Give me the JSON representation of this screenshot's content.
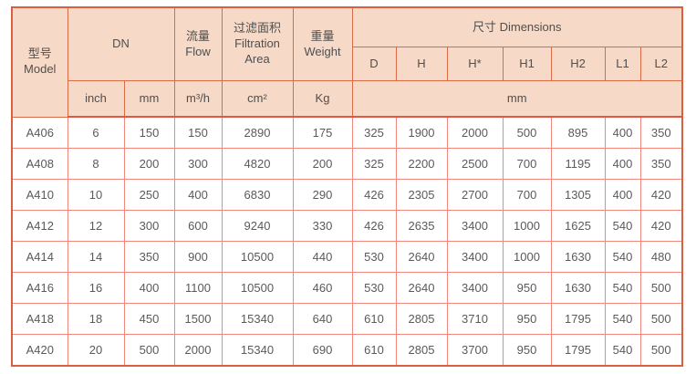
{
  "table": {
    "header": {
      "model_cn": "型号",
      "model_en": "Model",
      "dn": "DN",
      "flow_cn": "流量",
      "flow_en": "Flow",
      "filtration_cn": "过滤面积",
      "filtration_en": "Filtration Area",
      "weight_cn": "重量",
      "weight_en": "Weight",
      "dimensions": "尺寸 Dimensions",
      "dim_cols": [
        "D",
        "H",
        "H*",
        "H1",
        "H2",
        "L1",
        "L2"
      ],
      "units": {
        "dn_inch": "inch",
        "dn_mm": "mm",
        "flow": "m³/h",
        "filtration": "cm²",
        "weight": "Kg",
        "dimensions": "mm"
      }
    },
    "rows": [
      {
        "model": "A406",
        "values": [
          "6",
          "150",
          "150",
          "2890",
          "175",
          "325",
          "1900",
          "2000",
          "500",
          "895",
          "400",
          "350"
        ]
      },
      {
        "model": "A408",
        "values": [
          "8",
          "200",
          "300",
          "4820",
          "200",
          "325",
          "2200",
          "2500",
          "700",
          "1195",
          "400",
          "350"
        ]
      },
      {
        "model": "A410",
        "values": [
          "10",
          "250",
          "400",
          "6830",
          "290",
          "426",
          "2305",
          "2700",
          "700",
          "1305",
          "400",
          "420"
        ]
      },
      {
        "model": "A412",
        "values": [
          "12",
          "300",
          "600",
          "9240",
          "330",
          "426",
          "2635",
          "3400",
          "1000",
          "1625",
          "540",
          "420"
        ]
      },
      {
        "model": "A414",
        "values": [
          "14",
          "350",
          "900",
          "10500",
          "440",
          "530",
          "2640",
          "3400",
          "1000",
          "1630",
          "540",
          "480"
        ]
      },
      {
        "model": "A416",
        "values": [
          "16",
          "400",
          "1100",
          "10500",
          "460",
          "530",
          "2640",
          "3400",
          "950",
          "1630",
          "540",
          "500"
        ]
      },
      {
        "model": "A418",
        "values": [
          "18",
          "450",
          "1500",
          "15340",
          "640",
          "610",
          "2805",
          "3710",
          "950",
          "1795",
          "540",
          "500"
        ]
      },
      {
        "model": "A420",
        "values": [
          "20",
          "500",
          "2000",
          "15340",
          "690",
          "610",
          "2805",
          "3700",
          "950",
          "1795",
          "540",
          "500"
        ]
      }
    ],
    "colors": {
      "header_bg": "#f6d9c6",
      "header_border": "#dc6c47",
      "body_border": "#f0897b",
      "outer_border": "#d95f3e",
      "text": "#4f4f4f"
    }
  }
}
